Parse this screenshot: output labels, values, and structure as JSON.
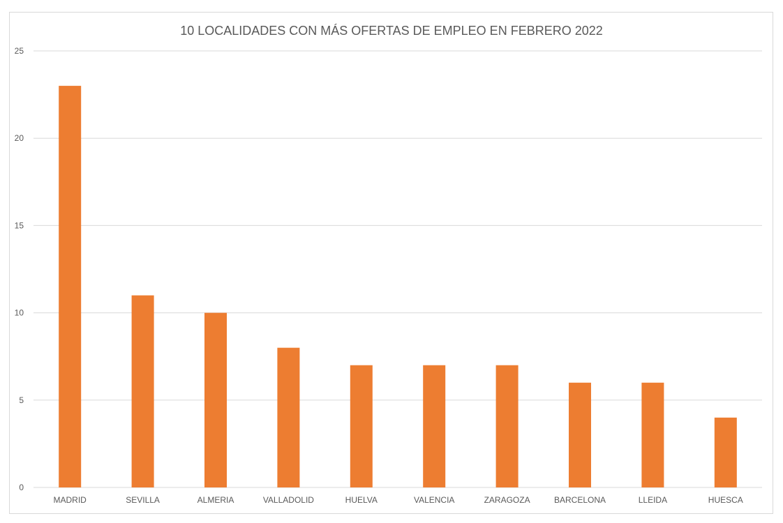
{
  "chart_data": {
    "type": "bar",
    "title": "10 LOCALIDADES CON MÁS OFERTAS DE EMPLEO EN FEBRERO 2022",
    "xlabel": "",
    "ylabel": "",
    "categories": [
      "MADRID",
      "SEVILLA",
      "ALMERIA",
      "VALLADOLID",
      "HUELVA",
      "VALENCIA",
      "ZARAGOZA",
      "BARCELONA",
      "LLEIDA",
      "HUESCA"
    ],
    "values": [
      23,
      11,
      10,
      8,
      7,
      7,
      7,
      6,
      6,
      4
    ],
    "ylim": [
      0,
      25
    ],
    "yticks": [
      0,
      5,
      10,
      15,
      20,
      25
    ],
    "grid": true,
    "legend": "none",
    "bar_color": "#ED7D31"
  }
}
